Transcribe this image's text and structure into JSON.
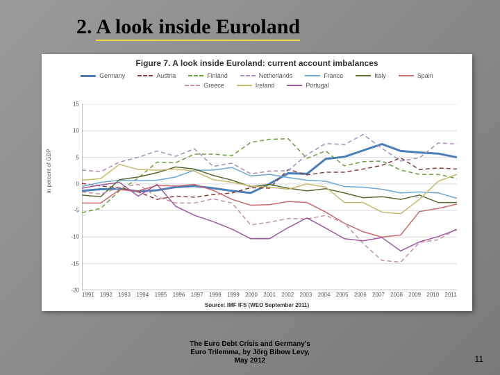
{
  "slide": {
    "title_prefix": "2. ",
    "title_main": "A look inside Euroland",
    "footer_line1": "The Euro Debt Crisis and Germany's",
    "footer_line2": "Euro Trilemma, by Jörg Bibow Levy,",
    "footer_line3": "May 2012",
    "page_number": "11"
  },
  "chart": {
    "figure_title": "Figure 7. A look inside Euroland: current account imbalances",
    "source": "Source: IMF IFS (WEO September 2011)",
    "ylabel": "in percent of GDP",
    "years": [
      "1991",
      "1992",
      "1993",
      "1994",
      "1995",
      "1996",
      "1997",
      "1998",
      "1999",
      "2000",
      "2001",
      "2002",
      "2003",
      "2004",
      "2005",
      "2006",
      "2007",
      "2008",
      "2009",
      "2010",
      "2011"
    ],
    "ylim": [
      -20,
      15
    ],
    "ytick_step": 5,
    "yticks": [
      15,
      10,
      5,
      0,
      -5,
      -10,
      -15,
      -20
    ],
    "background_color": "#ffffff",
    "grid_color": "#d9d9d9",
    "axis_color": "#888888",
    "tick_fontsize": 8,
    "label_fontsize": 8,
    "title_fontsize": 12,
    "legend_fontsize": 9,
    "series": [
      {
        "name": "Germany",
        "color": "#4a7ebb",
        "width": 3,
        "dash": "none",
        "data": [
          -1.3,
          -1.0,
          -0.9,
          -1.4,
          -1.2,
          -0.6,
          -0.4,
          -0.8,
          -1.3,
          -1.7,
          0.0,
          2.0,
          1.9,
          4.7,
          5.1,
          6.3,
          7.5,
          6.2,
          5.9,
          5.7,
          5.0
        ]
      },
      {
        "name": "Austria",
        "color": "#8b3a3a",
        "width": 1.5,
        "dash": "6 4",
        "data": [
          0.1,
          -0.4,
          -0.7,
          -1.5,
          -2.9,
          -2.3,
          -2.5,
          -2.0,
          -1.7,
          -0.7,
          -0.8,
          2.7,
          1.7,
          2.2,
          2.2,
          2.8,
          3.5,
          4.9,
          2.7,
          3.0,
          2.8
        ]
      },
      {
        "name": "Finland",
        "color": "#6b9e3a",
        "width": 1.5,
        "dash": "6 4",
        "data": [
          -5.4,
          -4.6,
          -1.3,
          1.1,
          4.1,
          4.0,
          5.6,
          5.6,
          5.3,
          7.8,
          8.4,
          8.5,
          4.8,
          6.2,
          3.4,
          4.2,
          4.3,
          2.6,
          1.8,
          1.8,
          1.0
        ]
      },
      {
        "name": "Netherlands",
        "color": "#a78bc0",
        "width": 1.5,
        "dash": "6 4",
        "data": [
          2.6,
          2.3,
          4.1,
          5.0,
          6.2,
          5.2,
          6.6,
          3.3,
          3.9,
          1.9,
          2.4,
          2.5,
          5.5,
          7.6,
          7.4,
          9.3,
          6.7,
          4.3,
          4.9,
          7.7,
          7.5
        ]
      },
      {
        "name": "France",
        "color": "#6aa6d6",
        "width": 1.5,
        "dash": "none",
        "data": [
          -0.5,
          0.3,
          0.7,
          0.6,
          0.7,
          1.3,
          2.6,
          2.6,
          3.1,
          1.5,
          1.8,
          1.2,
          0.7,
          0.5,
          -0.5,
          -0.6,
          -1.0,
          -1.7,
          -1.5,
          -1.7,
          -2.7
        ]
      },
      {
        "name": "Italy",
        "color": "#556b2f",
        "width": 1.5,
        "dash": "none",
        "data": [
          -2.1,
          -2.4,
          0.8,
          1.3,
          2.1,
          3.2,
          2.8,
          1.6,
          0.7,
          -0.5,
          -0.1,
          -0.8,
          -1.3,
          -0.9,
          -1.7,
          -2.6,
          -2.4,
          -2.9,
          -2.1,
          -3.5,
          -3.5
        ]
      },
      {
        "name": "Spain",
        "color": "#c96b6b",
        "width": 1.5,
        "dash": "none",
        "data": [
          -3.6,
          -3.6,
          -1.1,
          -1.3,
          -0.3,
          -0.4,
          -0.1,
          -1.2,
          -2.9,
          -4.0,
          -3.9,
          -3.3,
          -3.5,
          -5.3,
          -7.4,
          -9.0,
          -10.0,
          -9.6,
          -5.2,
          -4.6,
          -3.8
        ]
      },
      {
        "name": "Greece",
        "color": "#c78fa8",
        "width": 1.5,
        "dash": "6 4",
        "data": [
          -1.5,
          -1.9,
          -0.7,
          -0.1,
          -2.4,
          -3.6,
          -3.6,
          -2.8,
          -3.6,
          -7.7,
          -7.2,
          -6.5,
          -6.6,
          -5.9,
          -7.4,
          -11.2,
          -14.4,
          -14.7,
          -11.0,
          -10.5,
          -8.4
        ]
      },
      {
        "name": "Ireland",
        "color": "#c9b86a",
        "width": 1.5,
        "dash": "none",
        "data": [
          0.7,
          1.0,
          3.7,
          2.7,
          2.6,
          2.8,
          2.4,
          0.8,
          0.3,
          -0.4,
          -0.6,
          -1.0,
          0.0,
          -0.6,
          -3.5,
          -3.5,
          -5.3,
          -5.6,
          -2.9,
          0.5,
          1.8
        ]
      },
      {
        "name": "Portugal",
        "color": "#9e5aa0",
        "width": 1.5,
        "dash": "none",
        "data": [
          -0.8,
          -0.2,
          0.3,
          -2.3,
          -0.1,
          -4.2,
          -5.9,
          -7.1,
          -8.5,
          -10.3,
          -10.3,
          -8.2,
          -6.4,
          -8.3,
          -10.3,
          -10.7,
          -10.1,
          -12.6,
          -10.9,
          -9.9,
          -8.6
        ]
      }
    ]
  }
}
